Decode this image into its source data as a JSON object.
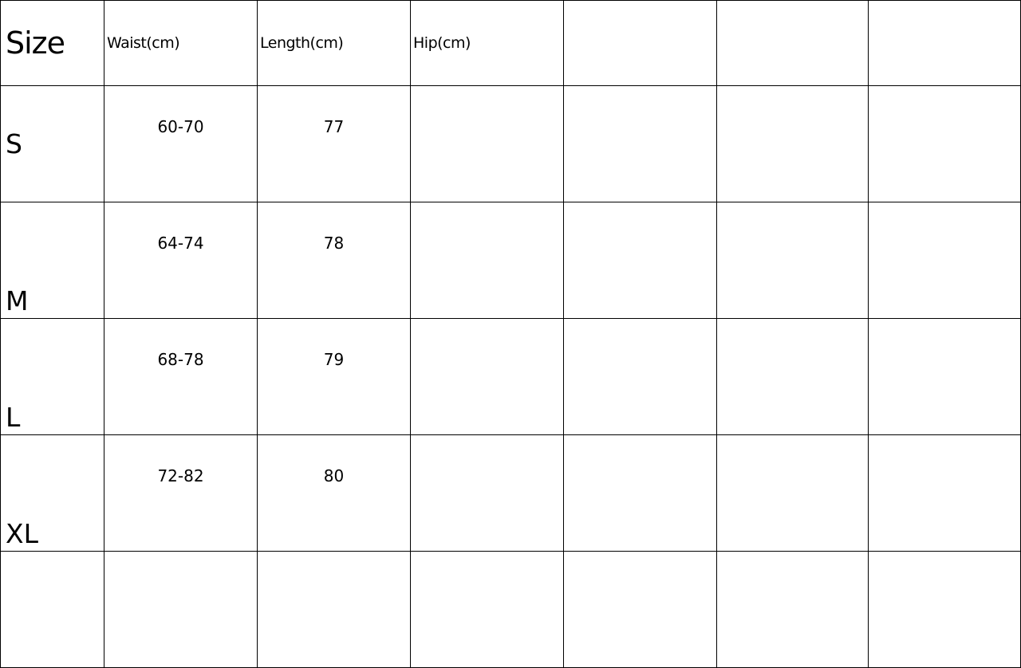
{
  "table": {
    "headers": [
      "Size",
      "Waist(cm)",
      "Length(cm)",
      "Hip(cm)",
      "",
      "",
      ""
    ],
    "rows": [
      {
        "size": "S",
        "waist": "60-70",
        "length": "77"
      },
      {
        "size": "M",
        "waist": "64-74",
        "length": "78"
      },
      {
        "size": "L",
        "waist": "68-78",
        "length": "79"
      },
      {
        "size": "XL",
        "waist": "72-82",
        "length": "80"
      },
      {
        "size": "",
        "waist": "",
        "length": ""
      }
    ]
  }
}
